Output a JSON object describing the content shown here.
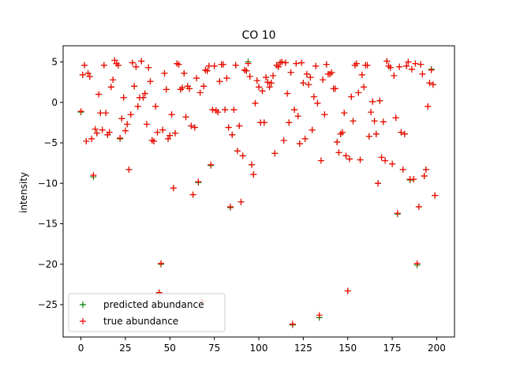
{
  "chart_data": {
    "type": "scatter",
    "title": "CO 10",
    "xlabel": "",
    "ylabel": "intensity",
    "xlim": [
      -10,
      210
    ],
    "ylim": [
      -29,
      7
    ],
    "xticks": [
      0,
      25,
      50,
      75,
      100,
      125,
      150,
      175,
      200
    ],
    "yticks": [
      5,
      0,
      -5,
      -10,
      -15,
      -20,
      -25
    ],
    "grid": false,
    "legend_position": "lower left",
    "x": [
      0,
      1,
      2,
      3,
      4,
      5,
      6,
      7,
      8,
      9,
      10,
      11,
      12,
      13,
      14,
      15,
      16,
      17,
      18,
      19,
      20,
      21,
      22,
      23,
      24,
      25,
      26,
      27,
      28,
      29,
      30,
      31,
      32,
      33,
      34,
      35,
      36,
      37,
      38,
      39,
      40,
      41,
      42,
      43,
      44,
      45,
      46,
      47,
      48,
      49,
      50,
      51,
      52,
      53,
      54,
      55,
      56,
      57,
      58,
      59,
      60,
      61,
      62,
      63,
      64,
      65,
      66,
      67,
      68,
      69,
      70,
      71,
      72,
      73,
      74,
      75,
      76,
      77,
      78,
      79,
      80,
      81,
      82,
      83,
      84,
      85,
      86,
      87,
      88,
      89,
      90,
      91,
      92,
      93,
      94,
      95,
      96,
      97,
      98,
      99,
      100,
      101,
      102,
      103,
      104,
      105,
      106,
      107,
      108,
      109,
      110,
      111,
      112,
      113,
      114,
      115,
      116,
      117,
      118,
      119,
      120,
      121,
      122,
      123,
      124,
      125,
      126,
      127,
      128,
      129,
      130,
      131,
      132,
      133,
      134,
      135,
      136,
      137,
      138,
      139,
      140,
      141,
      142,
      143,
      144,
      145,
      146,
      147,
      148,
      149,
      150,
      151,
      152,
      153,
      154,
      155,
      156,
      157,
      158,
      159,
      160,
      161,
      162,
      163,
      164,
      165,
      166,
      167,
      168,
      169,
      170,
      171,
      172,
      173,
      174,
      175,
      176,
      177,
      178,
      179,
      180,
      181,
      182,
      183,
      184,
      185,
      186,
      187,
      188,
      189,
      190,
      191,
      192,
      193,
      194,
      195,
      196,
      197,
      198,
      199
    ],
    "series": [
      {
        "name": "predicted abundance",
        "color": "#008000",
        "marker": "+",
        "values": [
          -1.2,
          3.4,
          4.6,
          -4.8,
          3.6,
          3.2,
          -4.5,
          -9.2,
          -3.3,
          -3.8,
          1.0,
          -1.3,
          -3.4,
          4.6,
          -1.3,
          -4.0,
          -3.7,
          1.9,
          2.8,
          5.2,
          4.8,
          4.6,
          -4.5,
          -2.0,
          0.6,
          -3.5,
          -2.7,
          -8.3,
          -1.5,
          4.9,
          2.0,
          4.4,
          -0.5,
          0.6,
          5.1,
          0.6,
          1.1,
          -2.7,
          4.3,
          2.6,
          -4.7,
          -4.8,
          -0.5,
          -3.7,
          -23.6,
          -20.0,
          -3.4,
          3.6,
          1.6,
          -4.5,
          -4.1,
          -1.5,
          -10.6,
          -3.8,
          4.8,
          4.7,
          1.6,
          1.8,
          3.6,
          -1.8,
          2.0,
          1.7,
          -2.9,
          -11.4,
          -3.1,
          3.0,
          -9.9,
          1.2,
          -24.6,
          2.0,
          4.0,
          3.9,
          4.5,
          -7.8,
          -0.9,
          4.5,
          -1.0,
          -1.2,
          2.6,
          4.7,
          4.7,
          -0.9,
          3.0,
          -3.1,
          -13.0,
          -4.0,
          -0.9,
          4.6,
          -6.0,
          -2.9,
          -12.3,
          -6.6,
          4.0,
          3.9,
          5.0,
          3.2,
          -7.7,
          -8.9,
          -0.1,
          2.7,
          1.9,
          -2.5,
          1.4,
          -2.5,
          3.1,
          2.5,
          1.9,
          2.4,
          3.3,
          -6.3,
          4.6,
          4.4,
          4.9,
          5.0,
          -4.7,
          4.9,
          1.1,
          -2.5,
          3.7,
          -27.5,
          -0.9,
          4.8,
          -1.7,
          -5.1,
          4.9,
          2.4,
          -4.5,
          3.5,
          2.2,
          3.1,
          -3.4,
          0.7,
          4.5,
          -0.1,
          -26.6,
          -7.2,
          2.8,
          -1.5,
          4.7,
          3.5,
          3.5,
          3.7,
          1.7,
          1.7,
          -4.9,
          -6.2,
          -3.9,
          -3.7,
          -1.3,
          -6.6,
          -23.3,
          -7.0,
          0.7,
          -2.3,
          4.6,
          4.8,
          1.2,
          -7.1,
          3.4,
          1.9,
          4.6,
          4.6,
          -4.2,
          -1.2,
          0.1,
          -2.3,
          -3.9,
          -10.0,
          0.2,
          -6.8,
          -2.4,
          -7.2,
          5.1,
          4.5,
          4.3,
          -7.6,
          3.3,
          -1.9,
          -13.8,
          4.4,
          -3.7,
          -8.3,
          -3.9,
          4.5,
          5.0,
          -9.6,
          4.1,
          -9.5,
          4.8,
          -20.1,
          -12.9,
          4.7,
          3.5,
          -9.1,
          -8.3,
          -0.5,
          2.4,
          4.1,
          2.2,
          -11.5
        ]
      },
      {
        "name": "true abundance",
        "color": "#ff0000",
        "marker": "+",
        "values": [
          -1.1,
          3.4,
          4.6,
          -4.8,
          3.6,
          3.2,
          -4.5,
          -9.0,
          -3.3,
          -3.8,
          1.0,
          -1.3,
          -3.4,
          4.6,
          -1.3,
          -4.0,
          -3.7,
          1.9,
          2.8,
          5.2,
          4.8,
          4.6,
          -4.4,
          -2.0,
          0.6,
          -3.5,
          -2.7,
          -8.3,
          -1.5,
          4.9,
          2.0,
          4.4,
          -0.5,
          0.6,
          5.1,
          0.6,
          1.1,
          -2.7,
          4.3,
          2.6,
          -4.7,
          -4.8,
          -0.5,
          -3.7,
          -23.5,
          -19.9,
          -3.4,
          3.6,
          1.6,
          -4.5,
          -4.1,
          -1.5,
          -10.6,
          -3.8,
          4.8,
          4.7,
          1.6,
          1.8,
          3.6,
          -1.8,
          2.0,
          1.7,
          -2.9,
          -11.4,
          -3.1,
          3.0,
          -9.8,
          1.2,
          -24.6,
          2.0,
          4.0,
          3.9,
          4.5,
          -7.7,
          -0.9,
          4.5,
          -1.0,
          -1.2,
          2.6,
          4.7,
          4.7,
          -0.9,
          3.0,
          -3.1,
          -12.9,
          -4.0,
          -0.9,
          4.6,
          -6.0,
          -2.9,
          -12.3,
          -6.6,
          4.0,
          3.9,
          4.8,
          3.2,
          -7.7,
          -8.9,
          -0.1,
          2.7,
          1.9,
          -2.5,
          1.4,
          -2.5,
          3.1,
          2.5,
          1.9,
          2.4,
          3.3,
          -6.3,
          4.6,
          4.4,
          4.9,
          5.0,
          -4.7,
          4.9,
          1.1,
          -2.5,
          3.7,
          -27.4,
          -0.9,
          4.8,
          -1.7,
          -5.1,
          4.9,
          2.4,
          -4.5,
          3.5,
          2.2,
          3.1,
          -3.4,
          0.7,
          4.5,
          -0.1,
          -26.3,
          -7.2,
          2.8,
          -1.5,
          4.7,
          3.5,
          3.5,
          3.7,
          1.7,
          1.7,
          -4.9,
          -6.2,
          -3.9,
          -3.7,
          -1.3,
          -6.6,
          -23.3,
          -7.0,
          0.7,
          -2.3,
          4.6,
          4.8,
          1.2,
          -7.1,
          3.4,
          1.9,
          4.6,
          4.6,
          -4.2,
          -1.2,
          0.1,
          -2.3,
          -3.9,
          -10.0,
          0.2,
          -6.8,
          -2.4,
          -7.2,
          5.1,
          4.5,
          4.3,
          -7.6,
          3.3,
          -1.9,
          -13.7,
          4.4,
          -3.7,
          -8.3,
          -3.9,
          4.5,
          5.0,
          -9.5,
          4.1,
          -9.5,
          4.8,
          -19.9,
          -12.9,
          4.7,
          3.5,
          -9.1,
          -8.3,
          -0.5,
          2.4,
          4.0,
          2.2,
          -11.5
        ]
      }
    ]
  }
}
